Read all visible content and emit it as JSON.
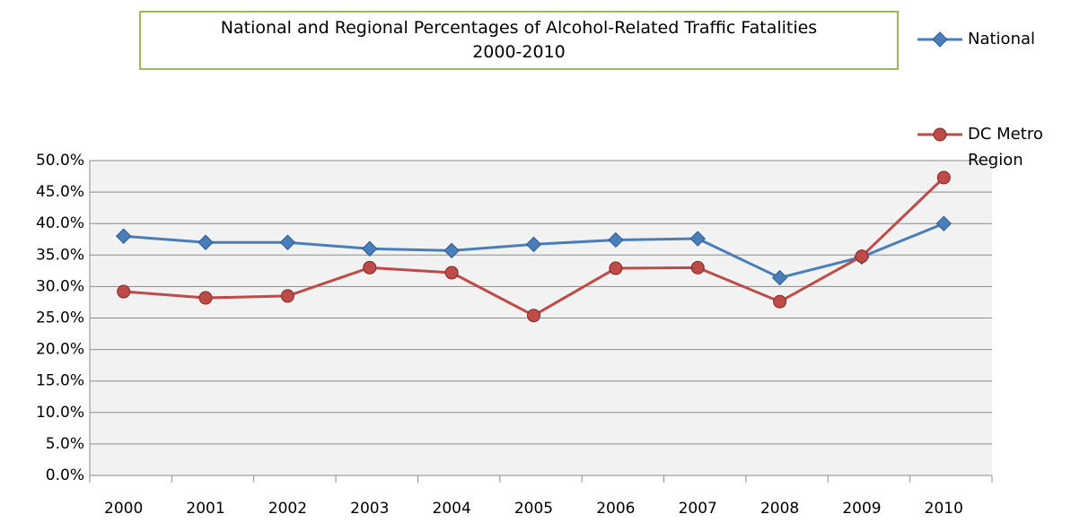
{
  "chart_data": {
    "type": "line",
    "title": "National and Regional Percentages of  Alcohol-Related Traffic Fatalities\n2000-2010",
    "categories": [
      "2000",
      "2001",
      "2002",
      "2003",
      "2004",
      "2005",
      "2006",
      "2007",
      "2008",
      "2009",
      "2010"
    ],
    "series": [
      {
        "name": "National",
        "color": "#4a7ebb",
        "marker": "diamond",
        "values": [
          38.0,
          37.0,
          37.0,
          36.0,
          35.7,
          36.7,
          37.4,
          37.6,
          31.4,
          34.7,
          40.0
        ]
      },
      {
        "name": "DC Metro Region",
        "color": "#be4b48",
        "marker": "circle",
        "values": [
          29.2,
          28.2,
          28.5,
          33.0,
          32.2,
          25.4,
          32.9,
          33.0,
          27.6,
          34.8,
          47.3
        ]
      }
    ],
    "ylim": [
      0,
      50
    ],
    "yticks": [
      {
        "value": 0,
        "label": "0.0%"
      },
      {
        "value": 5,
        "label": "5.0%"
      },
      {
        "value": 10,
        "label": "10.0%"
      },
      {
        "value": 15,
        "label": "15.0%"
      },
      {
        "value": 20,
        "label": "20.0%"
      },
      {
        "value": 25,
        "label": "25.0%"
      },
      {
        "value": 30,
        "label": "30.0%"
      },
      {
        "value": 35,
        "label": "35.0%"
      },
      {
        "value": 40,
        "label": "40.0%"
      },
      {
        "value": 45,
        "label": "45.0%"
      },
      {
        "value": 50,
        "label": "50.0%"
      }
    ],
    "grid": true,
    "legend": "right"
  }
}
